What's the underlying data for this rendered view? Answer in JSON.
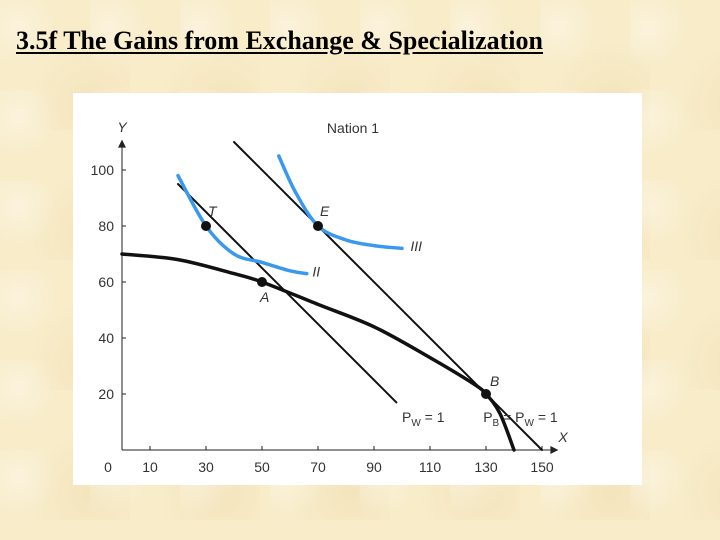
{
  "slide": {
    "title": "3.5f The Gains from Exchange & Specialization"
  },
  "chart_data": {
    "type": "line",
    "title": "Nation 1",
    "xlabel": "X",
    "ylabel": "Y",
    "xlim": [
      0,
      150
    ],
    "ylim": [
      0,
      110
    ],
    "x_ticks": [
      "0",
      "10",
      "30",
      "50",
      "70",
      "90",
      "110",
      "130",
      "150"
    ],
    "y_ticks": [
      "20",
      "40",
      "60",
      "80",
      "100"
    ],
    "points": [
      {
        "name": "T",
        "x": 30,
        "y": 80
      },
      {
        "name": "E",
        "x": 70,
        "y": 80
      },
      {
        "name": "A",
        "x": 50,
        "y": 60
      },
      {
        "name": "B",
        "x": 130,
        "y": 20
      }
    ],
    "series": [
      {
        "label_parts": [
          "P",
          "W",
          " = 1"
        ],
        "kind": "price line",
        "x": [
          20,
          98
        ],
        "y": [
          95,
          17
        ]
      },
      {
        "label_parts": [
          "P",
          "B",
          " = P",
          "W",
          " = 1"
        ],
        "kind": "price line",
        "x": [
          40,
          150
        ],
        "y": [
          110,
          0
        ]
      },
      {
        "label": "II",
        "kind": "indifference curve",
        "x": [
          20,
          30,
          40,
          50,
          60,
          66
        ],
        "y": [
          98,
          80,
          70,
          67,
          64,
          63
        ]
      },
      {
        "label": "III",
        "kind": "indifference curve",
        "x": [
          56,
          62,
          70,
          80,
          90,
          100
        ],
        "y": [
          105,
          92,
          80,
          75,
          73,
          72
        ]
      },
      {
        "kind": "production frontier",
        "x": [
          0,
          20,
          40,
          50,
          70,
          90,
          110,
          125,
          130,
          135,
          140
        ],
        "y": [
          70,
          68,
          63,
          60,
          52,
          44,
          33,
          24,
          20,
          13,
          0
        ]
      }
    ],
    "colors": {
      "indifference": "#3a99ee",
      "lines": "#111111"
    }
  }
}
